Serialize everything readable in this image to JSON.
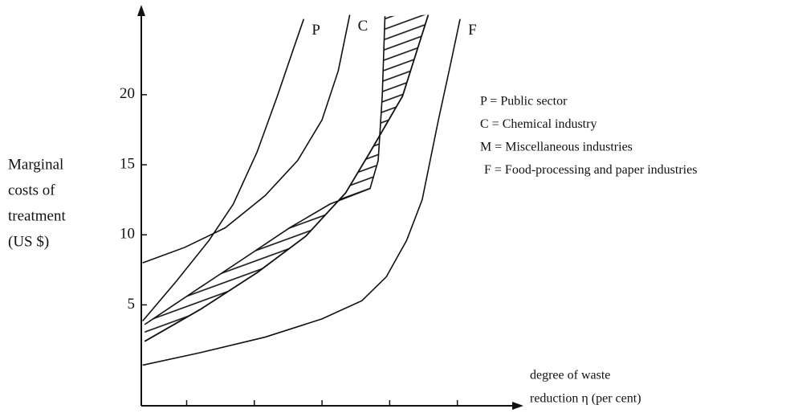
{
  "chart_data": {
    "type": "line",
    "y_label": [
      "Marginal",
      "costs of",
      "treatment",
      "(US $)"
    ],
    "x_label": [
      "degree of waste",
      "reduction η (per cent)"
    ],
    "legend": [
      "P = Public sector",
      "C = Chemical industry",
      "M = Miscellaneous industries",
      "F = Food-processing and paper industries"
    ],
    "xlim": [
      53.3,
      110
    ],
    "ylim": [
      -2.2,
      26.3
    ],
    "xticks": [
      60,
      70,
      80,
      90,
      100
    ],
    "yticks": [
      5,
      10,
      15,
      20
    ],
    "series": [
      {
        "name": "P",
        "color": "#111111",
        "x": [
          53.5,
          58.5,
          63.3,
          66.9,
          70.4,
          73.4,
          75.8,
          77.3
        ],
        "values": [
          3.85,
          6.7,
          9.6,
          12.2,
          15.9,
          19.9,
          23.3,
          25.4
        ]
      },
      {
        "name": "C",
        "color": "#111111",
        "x": [
          53.5,
          59.7,
          65.7,
          71.6,
          76.4,
          80.0,
          82.4,
          84.1
        ],
        "values": [
          8.0,
          9.1,
          10.5,
          12.8,
          15.3,
          18.2,
          21.7,
          25.7
        ]
      },
      {
        "name": "M",
        "color": "#111111",
        "x": [
          53.8,
          60.9,
          68.1,
          75.2,
          81.2,
          87.1,
          88.3,
          88.9,
          89.3
        ],
        "values": [
          3.6,
          5.9,
          8.2,
          10.5,
          12.2,
          13.3,
          15.3,
          19.9,
          25.6
        ],
        "lower_x": [
          53.8,
          62.1,
          70.4,
          77.6,
          83.5,
          87.1,
          91.9,
          95.7
        ],
        "lower_values": [
          2.4,
          4.7,
          7.3,
          9.9,
          13.0,
          15.9,
          19.9,
          25.7
        ]
      },
      {
        "name": "F",
        "color": "#111111",
        "x": [
          53.5,
          62.1,
          71.6,
          80.0,
          85.9,
          89.5,
          92.5,
          94.8,
          97.2,
          99.0,
          100.4
        ],
        "values": [
          0.7,
          1.6,
          2.7,
          4.0,
          5.3,
          7.0,
          9.6,
          12.5,
          18.2,
          22.2,
          25.4
        ]
      }
    ]
  }
}
